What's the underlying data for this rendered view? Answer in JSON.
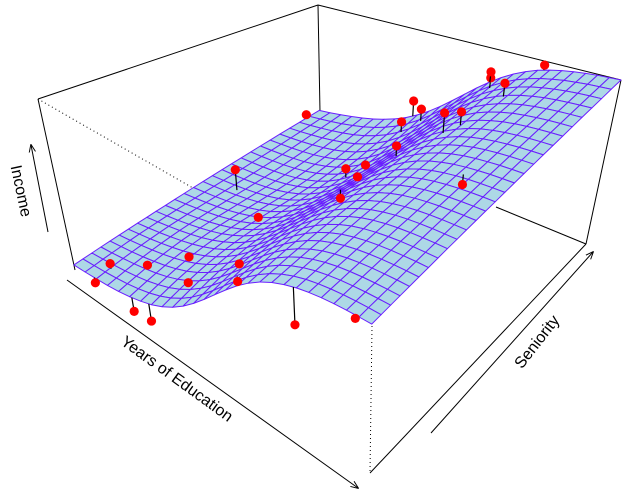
{
  "chart_data": {
    "type": "surface",
    "title": "",
    "xlabel": "Years of Education",
    "ylabel": "Seniority",
    "zlabel": "Income",
    "grid": false,
    "axis_ranges_normalized": {
      "x": [
        0,
        1
      ],
      "y": [
        0,
        1
      ],
      "z": [
        0,
        1
      ]
    },
    "surface_resolution": 26,
    "points": [
      {
        "x": 0.08,
        "y": 0.06,
        "z_residual": 0.03
      },
      {
        "x": 0.07,
        "y": 0.0,
        "z_residual": -0.03
      },
      {
        "x": 0.2,
        "y": 0.0,
        "z_residual": -0.08
      },
      {
        "x": 0.26,
        "y": 0.0,
        "z_residual": -0.1
      },
      {
        "x": 0.16,
        "y": 0.12,
        "z_residual": 0.02
      },
      {
        "x": 0.24,
        "y": 0.2,
        "z_residual": 0.02
      },
      {
        "x": 0.32,
        "y": 0.1,
        "z_residual": 0.01
      },
      {
        "x": 0.46,
        "y": 0.15,
        "z_residual": 0.01
      },
      {
        "x": 0.52,
        "y": 0.07,
        "z_residual": -0.03
      },
      {
        "x": 0.76,
        "y": 0.0,
        "z_residual": -0.22
      },
      {
        "x": 0.95,
        "y": 0.0,
        "z_residual": -0.02
      },
      {
        "x": 0.27,
        "y": 0.45,
        "z_residual": 0.01
      },
      {
        "x": 0.1,
        "y": 0.56,
        "z_residual": 0.12
      },
      {
        "x": 0.0,
        "y": 0.95,
        "z_residual": 0.02
      },
      {
        "x": 0.36,
        "y": 0.7,
        "z_residual": 0.05
      },
      {
        "x": 0.41,
        "y": 0.72,
        "z_residual": 0.02
      },
      {
        "x": 0.46,
        "y": 0.56,
        "z_residual": -0.05
      },
      {
        "x": 0.5,
        "y": 0.58,
        "z_residual": 0.02
      },
      {
        "x": 0.56,
        "y": 0.66,
        "z_residual": 0.06
      },
      {
        "x": 0.66,
        "y": 0.72,
        "z_residual": 0.12
      },
      {
        "x": 0.69,
        "y": 0.75,
        "z_residual": 0.08
      },
      {
        "x": 0.86,
        "y": 0.55,
        "z_residual": -0.06
      },
      {
        "x": 0.36,
        "y": 0.92,
        "z_residual": 0.06
      },
      {
        "x": 0.4,
        "y": 0.95,
        "z_residual": 0.07
      },
      {
        "x": 0.33,
        "y": 1.0,
        "z_residual": 0.09
      },
      {
        "x": 0.62,
        "y": 0.95,
        "z_residual": 0.06
      },
      {
        "x": 0.58,
        "y": 1.0,
        "z_residual": 0.06
      },
      {
        "x": 0.72,
        "y": 0.88,
        "z_residual": 0.08
      },
      {
        "x": 0.75,
        "y": 1.0,
        "z_residual": 0.03
      }
    ]
  },
  "colors": {
    "surface_fill": "#add8e6",
    "surface_mesh": "#6a1eff",
    "points": "#ff0000",
    "stems": "#000000",
    "box": "#000000"
  }
}
